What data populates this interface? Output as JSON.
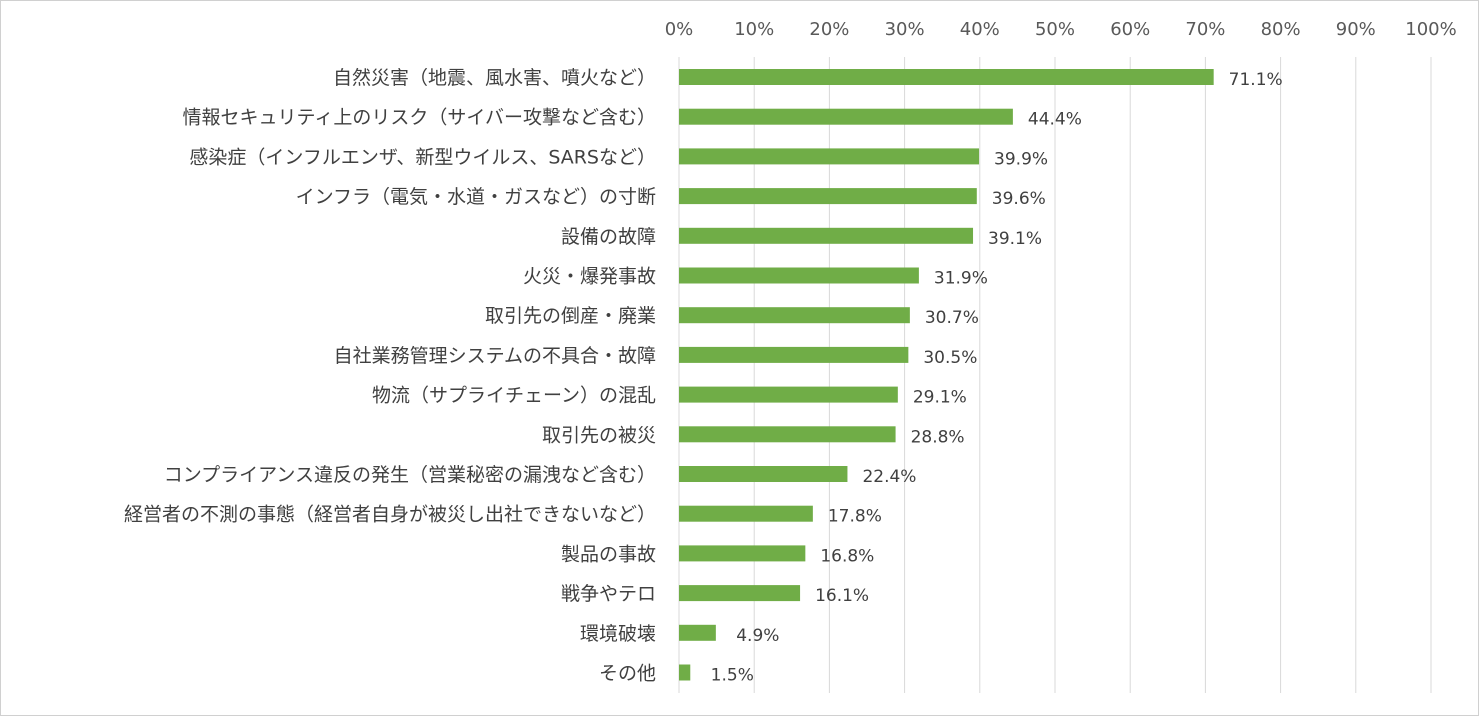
{
  "chart_data": {
    "type": "bar",
    "orientation": "horizontal",
    "title": "",
    "xlabel": "",
    "ylabel": "",
    "xlim": [
      0,
      100
    ],
    "x_ticks": [
      0,
      10,
      20,
      30,
      40,
      50,
      60,
      70,
      80,
      90,
      100
    ],
    "tick_labels": [
      "0%",
      "10%",
      "20%",
      "30%",
      "40%",
      "50%",
      "60%",
      "70%",
      "80%",
      "90%",
      "100%"
    ],
    "grid": true,
    "bar_color": "#70ad47",
    "categories": [
      "自然災害（地震、風水害、噴火など）",
      "情報セキュリティ上のリスク（サイバー攻撃など含む）",
      "感染症（インフルエンザ、新型ウイルス、SARSなど）",
      "インフラ（電気・水道・ガスなど）の寸断",
      "設備の故障",
      "火災・爆発事故",
      "取引先の倒産・廃業",
      "自社業務管理システムの不具合・故障",
      "物流（サプライチェーン）の混乱",
      "取引先の被災",
      "コンプライアンス違反の発生（営業秘密の漏洩など含む）",
      "経営者の不測の事態（経営者自身が被災し出社できないなど）",
      "製品の事故",
      "戦争やテロ",
      "環境破壊",
      "その他"
    ],
    "values": [
      71.1,
      44.4,
      39.9,
      39.6,
      39.1,
      31.9,
      30.7,
      30.5,
      29.1,
      28.8,
      22.4,
      17.8,
      16.8,
      16.1,
      4.9,
      1.5
    ],
    "data_labels": [
      "71.1%",
      "44.4%",
      "39.9%",
      "39.6%",
      "39.1%",
      "31.9%",
      "30.7%",
      "30.5%",
      "29.1%",
      "28.8%",
      "22.4%",
      "17.8%",
      "16.8%",
      "16.1%",
      "4.9%",
      "1.5%"
    ]
  }
}
